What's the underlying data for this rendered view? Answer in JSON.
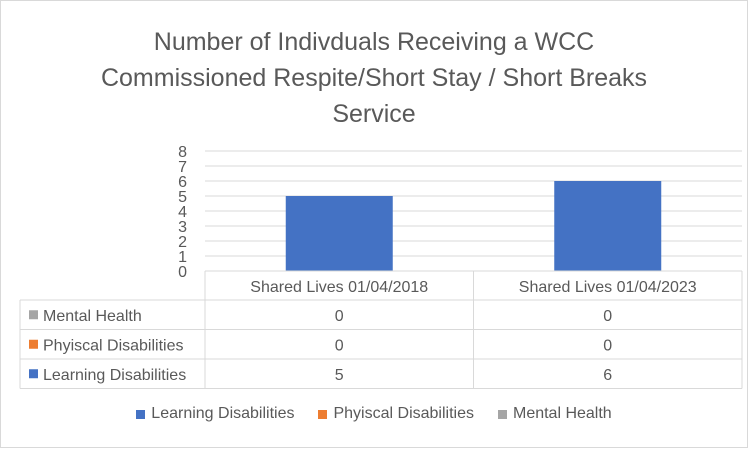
{
  "chart_data": {
    "type": "bar",
    "title_lines": [
      "Number of Indivduals Receiving a WCC",
      "Commissioned Respite/Short Stay / Short Breaks",
      "Service"
    ],
    "categories": [
      "Shared Lives 01/04/2018",
      "Shared Lives 01/04/2023"
    ],
    "series": [
      {
        "name": "Learning Disabilities",
        "color": "#4472c4",
        "values": [
          5,
          6
        ]
      },
      {
        "name": "Phyiscal Disabilities",
        "color": "#ed7d31",
        "values": [
          0,
          0
        ]
      },
      {
        "name": "Mental Health",
        "color": "#a5a5a5",
        "values": [
          0,
          0
        ]
      }
    ],
    "table_row_order": [
      "Mental Health",
      "Phyiscal Disabilities",
      "Learning Disabilities"
    ],
    "y_ticks": [
      "0",
      "1",
      "2",
      "3",
      "4",
      "5",
      "6",
      "7",
      "8"
    ],
    "ylim": [
      0,
      8
    ],
    "grid": true,
    "data_table": true,
    "legend_position": "bottom"
  }
}
